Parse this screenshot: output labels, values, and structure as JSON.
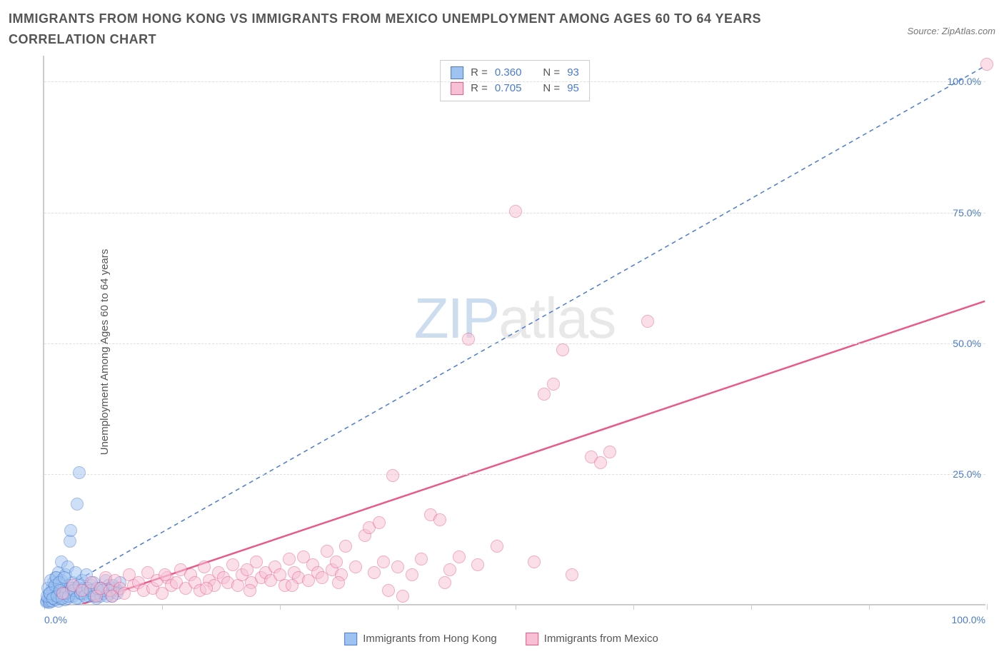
{
  "title": "IMMIGRANTS FROM HONG KONG VS IMMIGRANTS FROM MEXICO UNEMPLOYMENT AMONG AGES 60 TO 64 YEARS CORRELATION CHART",
  "source": "Source: ZipAtlas.com",
  "y_axis_label": "Unemployment Among Ages 60 to 64 years",
  "watermark": {
    "part1": "ZIP",
    "part2": "atlas"
  },
  "chart": {
    "type": "scatter",
    "xlim": [
      0,
      100
    ],
    "ylim": [
      0,
      105
    ],
    "x_ticks": [
      0,
      12.5,
      25,
      37.5,
      50,
      62.5,
      75,
      87.5,
      100
    ],
    "x_tick_labels": {
      "0": "0.0%",
      "100": "100.0%"
    },
    "y_ticks": [
      25,
      50,
      75,
      100
    ],
    "y_tick_labels": [
      "25.0%",
      "50.0%",
      "75.0%",
      "100.0%"
    ],
    "grid_color": "#e0e0e0",
    "axis_color": "#cccccc",
    "tick_label_color": "#4a7bd0",
    "background_color": "#ffffff",
    "marker_radius": 9,
    "marker_opacity": 0.5,
    "series": [
      {
        "name": "Immigrants from Hong Kong",
        "color_fill": "#9ec3f0",
        "color_stroke": "#4a7bd0",
        "R": "0.360",
        "N": "93",
        "trendline": {
          "x1": 0,
          "y1": 1,
          "x2": 100,
          "y2": 103,
          "dash": "6,5",
          "width": 1.5
        },
        "points": [
          [
            0.2,
            0.3
          ],
          [
            0.3,
            0.5
          ],
          [
            0.4,
            1.0
          ],
          [
            0.5,
            0.2
          ],
          [
            0.5,
            2.0
          ],
          [
            0.6,
            0.5
          ],
          [
            0.7,
            1.5
          ],
          [
            0.8,
            3.0
          ],
          [
            0.8,
            0.5
          ],
          [
            0.9,
            2.5
          ],
          [
            1.0,
            1.0
          ],
          [
            1.0,
            4.0
          ],
          [
            1.1,
            0.8
          ],
          [
            1.2,
            2.0
          ],
          [
            1.2,
            5.0
          ],
          [
            1.3,
            1.5
          ],
          [
            1.4,
            3.5
          ],
          [
            1.5,
            0.5
          ],
          [
            1.5,
            6.0
          ],
          [
            1.6,
            2.0
          ],
          [
            1.7,
            1.0
          ],
          [
            1.8,
            4.5
          ],
          [
            1.8,
            8.0
          ],
          [
            2.0,
            2.5
          ],
          [
            2.0,
            1.5
          ],
          [
            2.1,
            3.0
          ],
          [
            2.2,
            0.8
          ],
          [
            2.3,
            5.5
          ],
          [
            2.4,
            2.0
          ],
          [
            2.5,
            7.0
          ],
          [
            2.5,
            1.0
          ],
          [
            2.6,
            3.5
          ],
          [
            2.7,
            12.0
          ],
          [
            2.8,
            2.5
          ],
          [
            2.8,
            14.0
          ],
          [
            3.0,
            4.0
          ],
          [
            3.0,
            1.5
          ],
          [
            3.2,
            2.0
          ],
          [
            3.3,
            6.0
          ],
          [
            3.5,
            3.0
          ],
          [
            3.5,
            19.0
          ],
          [
            3.6,
            1.0
          ],
          [
            3.7,
            25.0
          ],
          [
            3.8,
            2.5
          ],
          [
            4.0,
            4.5
          ],
          [
            4.0,
            1.8
          ],
          [
            4.2,
            3.0
          ],
          [
            4.5,
            2.0
          ],
          [
            4.5,
            5.5
          ],
          [
            4.8,
            1.5
          ],
          [
            5.0,
            3.5
          ],
          [
            5.0,
            2.0
          ],
          [
            5.2,
            4.0
          ],
          [
            5.5,
            1.0
          ],
          [
            5.8,
            2.5
          ],
          [
            6.0,
            3.0
          ],
          [
            6.0,
            1.5
          ],
          [
            6.3,
            2.0
          ],
          [
            6.5,
            4.5
          ],
          [
            6.8,
            3.5
          ],
          [
            7.0,
            2.0
          ],
          [
            7.2,
            1.5
          ],
          [
            7.5,
            3.0
          ],
          [
            7.8,
            2.5
          ],
          [
            8.0,
            4.0
          ],
          [
            0.3,
            1.5
          ],
          [
            0.4,
            3.0
          ],
          [
            0.6,
            2.0
          ],
          [
            0.7,
            4.5
          ],
          [
            0.9,
            1.0
          ],
          [
            1.1,
            3.5
          ],
          [
            1.3,
            5.0
          ],
          [
            1.4,
            1.5
          ],
          [
            1.6,
            4.0
          ],
          [
            1.7,
            2.5
          ],
          [
            1.9,
            1.0
          ],
          [
            2.1,
            5.0
          ],
          [
            2.3,
            2.0
          ],
          [
            2.6,
            1.5
          ],
          [
            2.9,
            3.0
          ],
          [
            3.1,
            2.5
          ],
          [
            3.4,
            1.0
          ],
          [
            3.7,
            3.5
          ],
          [
            3.9,
            2.0
          ],
          [
            4.3,
            1.5
          ],
          [
            4.6,
            3.0
          ],
          [
            4.9,
            2.5
          ],
          [
            5.3,
            1.5
          ],
          [
            5.6,
            3.0
          ],
          [
            6.2,
            2.5
          ],
          [
            6.7,
            1.5
          ],
          [
            7.3,
            3.5
          ],
          [
            7.7,
            2.0
          ]
        ]
      },
      {
        "name": "Immigrants from Mexico",
        "color_fill": "#f7c0d4",
        "color_stroke": "#e85a8a",
        "R": "0.705",
        "N": "95",
        "trendline": {
          "x1": 4,
          "y1": 0,
          "x2": 100,
          "y2": 58,
          "dash": "none",
          "width": 2.5
        },
        "points": [
          [
            2.0,
            2.0
          ],
          [
            3.0,
            3.5
          ],
          [
            4.0,
            2.5
          ],
          [
            5.0,
            4.0
          ],
          [
            5.5,
            1.5
          ],
          [
            6.0,
            3.0
          ],
          [
            6.5,
            5.0
          ],
          [
            7.0,
            2.5
          ],
          [
            7.5,
            4.5
          ],
          [
            8.0,
            3.0
          ],
          [
            8.5,
            2.0
          ],
          [
            9.0,
            5.5
          ],
          [
            9.5,
            3.5
          ],
          [
            10.0,
            4.0
          ],
          [
            10.5,
            2.5
          ],
          [
            11.0,
            6.0
          ],
          [
            11.5,
            3.0
          ],
          [
            12.0,
            4.5
          ],
          [
            12.5,
            2.0
          ],
          [
            13.0,
            5.0
          ],
          [
            13.5,
            3.5
          ],
          [
            14.0,
            4.0
          ],
          [
            14.5,
            6.5
          ],
          [
            15.0,
            3.0
          ],
          [
            15.5,
            5.5
          ],
          [
            16.0,
            4.0
          ],
          [
            16.5,
            2.5
          ],
          [
            17.0,
            7.0
          ],
          [
            17.5,
            4.5
          ],
          [
            18.0,
            3.5
          ],
          [
            18.5,
            6.0
          ],
          [
            19.0,
            5.0
          ],
          [
            19.5,
            4.0
          ],
          [
            20.0,
            7.5
          ],
          [
            20.5,
            3.5
          ],
          [
            21.0,
            5.5
          ],
          [
            21.5,
            6.5
          ],
          [
            22.0,
            4.0
          ],
          [
            22.5,
            8.0
          ],
          [
            23.0,
            5.0
          ],
          [
            23.5,
            6.0
          ],
          [
            24.0,
            4.5
          ],
          [
            24.5,
            7.0
          ],
          [
            25.0,
            5.5
          ],
          [
            25.5,
            3.5
          ],
          [
            26.0,
            8.5
          ],
          [
            26.5,
            6.0
          ],
          [
            27.0,
            5.0
          ],
          [
            27.5,
            9.0
          ],
          [
            28.0,
            4.5
          ],
          [
            28.5,
            7.5
          ],
          [
            29.0,
            6.0
          ],
          [
            29.5,
            5.0
          ],
          [
            30.0,
            10.0
          ],
          [
            30.5,
            6.5
          ],
          [
            31.0,
            8.0
          ],
          [
            31.5,
            5.5
          ],
          [
            32.0,
            11.0
          ],
          [
            33.0,
            7.0
          ],
          [
            34.0,
            13.0
          ],
          [
            34.5,
            14.5
          ],
          [
            35.0,
            6.0
          ],
          [
            35.5,
            15.5
          ],
          [
            36.0,
            8.0
          ],
          [
            37.0,
            24.5
          ],
          [
            37.5,
            7.0
          ],
          [
            38.0,
            1.5
          ],
          [
            39.0,
            5.5
          ],
          [
            40.0,
            8.5
          ],
          [
            41.0,
            17.0
          ],
          [
            42.0,
            16.0
          ],
          [
            43.0,
            6.5
          ],
          [
            44.0,
            9.0
          ],
          [
            45.0,
            50.5
          ],
          [
            46.0,
            7.5
          ],
          [
            48.0,
            11.0
          ],
          [
            50.0,
            75.0
          ],
          [
            52.0,
            8.0
          ],
          [
            53.0,
            40.0
          ],
          [
            54.0,
            42.0
          ],
          [
            55.0,
            48.5
          ],
          [
            56.0,
            5.5
          ],
          [
            58.0,
            28.0
          ],
          [
            59.0,
            27.0
          ],
          [
            60.0,
            29.0
          ],
          [
            64.0,
            54.0
          ],
          [
            100.0,
            103.0
          ],
          [
            7.2,
            1.5
          ],
          [
            12.8,
            5.5
          ],
          [
            17.2,
            3.0
          ],
          [
            21.8,
            2.5
          ],
          [
            26.3,
            3.5
          ],
          [
            31.2,
            4.0
          ],
          [
            36.5,
            2.5
          ],
          [
            42.5,
            4.0
          ]
        ]
      }
    ]
  },
  "stats_box": {
    "rows": [
      {
        "swatch_fill": "#9ec3f0",
        "swatch_stroke": "#4a7bd0",
        "r_label": "R =",
        "r_val": "0.360",
        "n_label": "N =",
        "n_val": "93"
      },
      {
        "swatch_fill": "#f7c0d4",
        "swatch_stroke": "#e85a8a",
        "r_label": "R =",
        "r_val": "0.705",
        "n_label": "N =",
        "n_val": "95"
      }
    ]
  },
  "bottom_legend": [
    {
      "swatch_fill": "#9ec3f0",
      "swatch_stroke": "#4a7bd0",
      "label": "Immigrants from Hong Kong"
    },
    {
      "swatch_fill": "#f7c0d4",
      "swatch_stroke": "#e85a8a",
      "label": "Immigrants from Mexico"
    }
  ]
}
